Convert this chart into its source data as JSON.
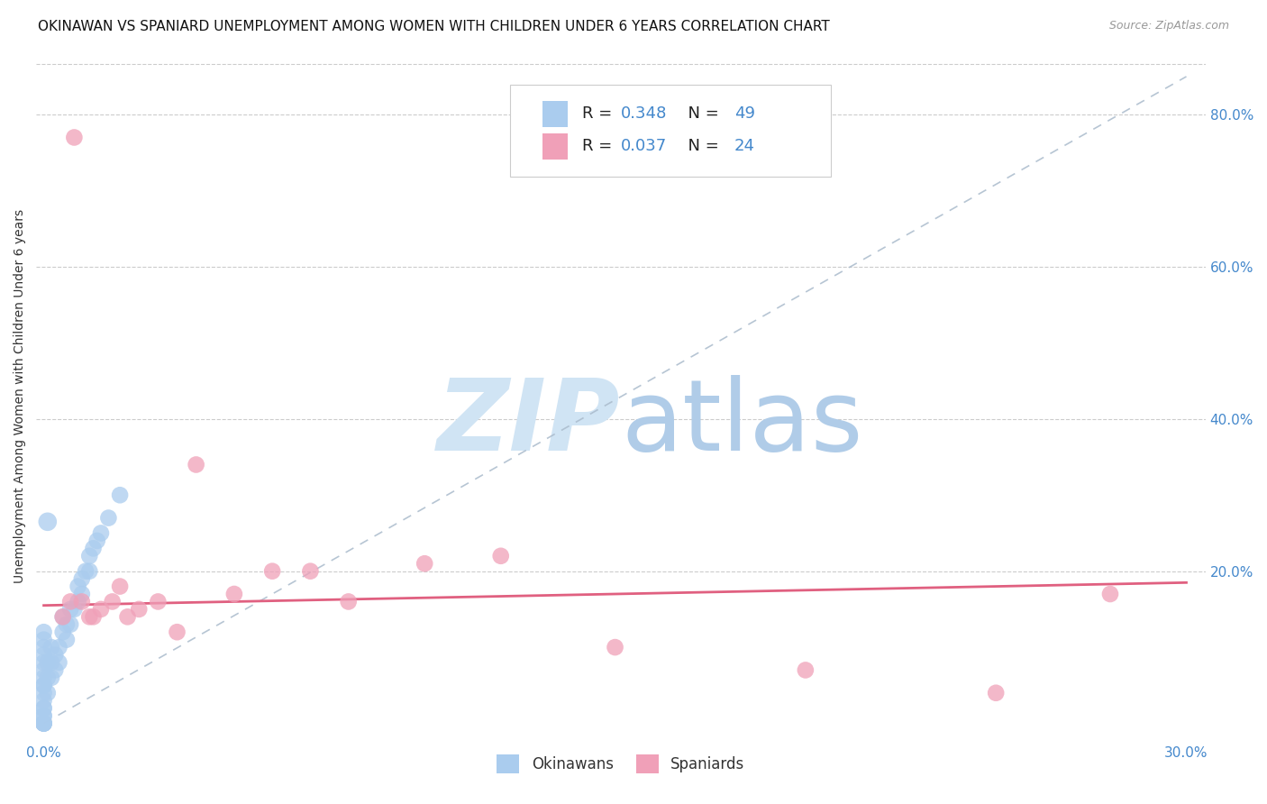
{
  "title": "OKINAWAN VS SPANIARD UNEMPLOYMENT AMONG WOMEN WITH CHILDREN UNDER 6 YEARS CORRELATION CHART",
  "source": "Source: ZipAtlas.com",
  "ylabel": "Unemployment Among Women with Children Under 6 years",
  "xlim": [
    -0.002,
    0.305
  ],
  "ylim": [
    -0.02,
    0.88
  ],
  "xtick_vals": [
    0.0,
    0.05,
    0.1,
    0.15,
    0.2,
    0.25,
    0.3
  ],
  "xtick_labels": [
    "0.0%",
    "",
    "",
    "",
    "",
    "",
    "30.0%"
  ],
  "ytick_vals": [
    0.2,
    0.4,
    0.6,
    0.8
  ],
  "ytick_labels": [
    "20.0%",
    "40.0%",
    "60.0%",
    "80.0%"
  ],
  "blue_color": "#aaccee",
  "pink_color": "#f0a0b8",
  "tick_color": "#4488cc",
  "grid_color": "#cccccc",
  "title_fontsize": 11,
  "axis_label_fontsize": 10,
  "tick_fontsize": 11,
  "okinawan_R": 0.348,
  "okinawan_N": 49,
  "spaniard_R": 0.037,
  "spaniard_N": 24,
  "ok_x": [
    0.0,
    0.0,
    0.0,
    0.0,
    0.0,
    0.0,
    0.0,
    0.0,
    0.0,
    0.0,
    0.0,
    0.0,
    0.0,
    0.0,
    0.0,
    0.0,
    0.0,
    0.0,
    0.0,
    0.0,
    0.001,
    0.001,
    0.001,
    0.002,
    0.002,
    0.002,
    0.003,
    0.003,
    0.004,
    0.004,
    0.005,
    0.005,
    0.006,
    0.006,
    0.007,
    0.007,
    0.008,
    0.009,
    0.009,
    0.01,
    0.01,
    0.011,
    0.012,
    0.012,
    0.013,
    0.014,
    0.015,
    0.017,
    0.02
  ],
  "ok_y": [
    0.0,
    0.0,
    0.0,
    0.0,
    0.0,
    0.01,
    0.01,
    0.02,
    0.02,
    0.03,
    0.04,
    0.05,
    0.05,
    0.06,
    0.07,
    0.08,
    0.09,
    0.1,
    0.11,
    0.12,
    0.04,
    0.06,
    0.08,
    0.06,
    0.08,
    0.1,
    0.07,
    0.09,
    0.08,
    0.1,
    0.12,
    0.14,
    0.11,
    0.13,
    0.13,
    0.15,
    0.15,
    0.16,
    0.18,
    0.17,
    0.19,
    0.2,
    0.2,
    0.22,
    0.23,
    0.24,
    0.25,
    0.27,
    0.3
  ],
  "ok_special_x": [
    0.001
  ],
  "ok_special_y": [
    0.265
  ],
  "sp_x": [
    0.005,
    0.007,
    0.008,
    0.01,
    0.012,
    0.013,
    0.015,
    0.018,
    0.02,
    0.022,
    0.025,
    0.03,
    0.035,
    0.04,
    0.05,
    0.06,
    0.07,
    0.08,
    0.1,
    0.12,
    0.15,
    0.2,
    0.25,
    0.28
  ],
  "sp_y": [
    0.14,
    0.16,
    0.77,
    0.16,
    0.14,
    0.14,
    0.15,
    0.16,
    0.18,
    0.14,
    0.15,
    0.16,
    0.12,
    0.34,
    0.17,
    0.2,
    0.2,
    0.16,
    0.21,
    0.22,
    0.1,
    0.07,
    0.04,
    0.17
  ],
  "blue_trendline_x": [
    0.0,
    0.3
  ],
  "blue_trendline_y": [
    0.0,
    0.85
  ],
  "pink_trendline_x": [
    0.0,
    0.3
  ],
  "pink_trendline_y": [
    0.155,
    0.185
  ],
  "watermark_zip_color": "#d0e4f4",
  "watermark_atlas_color": "#b0cce8",
  "background_color": "#ffffff"
}
